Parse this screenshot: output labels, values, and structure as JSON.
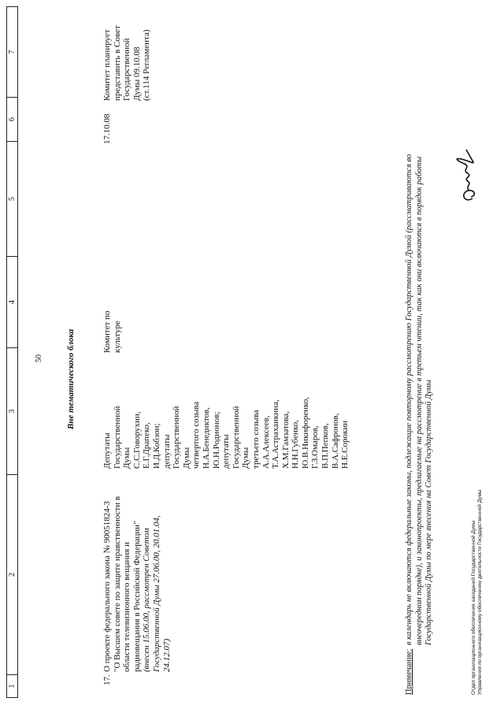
{
  "page_number": "50",
  "table_header": [
    "1",
    "2",
    "3",
    "4",
    "5",
    "6",
    "7"
  ],
  "section_title": "Вне тематического блока",
  "row": {
    "number": "17.",
    "title_lines": [
      "О проекте федерального закона № 90051824-3",
      "\"О Высшем совете по защите нравственности в",
      "области телевизионного вещания и",
      "радиовещания в Российской Федерации\""
    ],
    "history_lines": [
      "(внесен 15.06.00, рассмотрен Советом",
      "Государственной Думы 27.06.00, 20.01.04,",
      "24.12.07)"
    ],
    "initiators_lines": [
      "Депутаты",
      "Государственной",
      "Думы",
      "С.С.Говорухин,",
      "Е.Г.Драпеко,",
      "И.Д.Кобзон;",
      "депутаты",
      "Государственной",
      "Думы",
      "четвертого созыва",
      "Н.А.Бенедиктов,",
      "Ю.Н.Родионов;",
      "депутаты",
      "Государственной",
      "Думы",
      "третьего созыва",
      "А.А.Алексеев,",
      "Т.А.Астраханкина,",
      "Х.М.Гамзатова,",
      "Н.Н.Губенко,",
      "Ю.В.Никифоренко,",
      "Г.З.Омаров,",
      "В.П.Пепков,",
      "В.А.Сафронов,",
      "Н.Е.Сорокин"
    ],
    "committee_lines": [
      "Комитет по",
      "культуре"
    ],
    "date": "17.10.08",
    "remark_lines": [
      "Комитет планирует",
      "представить в Совет",
      "Государственной",
      "Думы 09.10.08",
      "(ст.114 Регламента)"
    ]
  },
  "note": {
    "label": "Примечание:",
    "lines": [
      "в календарь не включаются федеральные законы, подлежащие  повторному рассмотрению Государственной Думой  (рассматриваются во",
      "внеочередном порядке), и законопроекты, предлагаемые на рассмотрение в третьем чтении, так как они включаются в порядок работы",
      "Государственной Думы по мере внесения на Совет Государственной Думы"
    ]
  },
  "footer_lines": [
    "Отдел организационного обеспечения заседаний Государственной Думы",
    "Управления по организационному обеспечению деятельности Государственной Думы"
  ]
}
